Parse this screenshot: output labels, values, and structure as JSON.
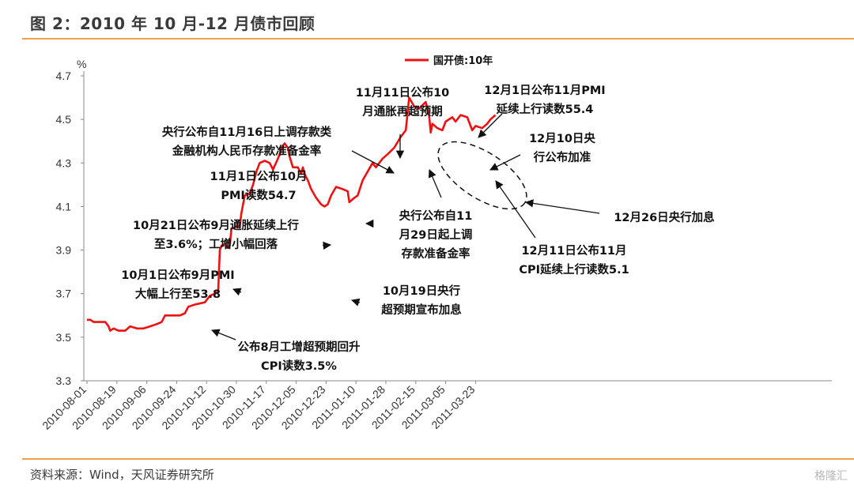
{
  "title": "图 2：2010 年 10 月-12 月债市回顾",
  "source": "资料来源：Wind，天风证券研究所",
  "watermark": "格隆汇",
  "chart_data": {
    "type": "line",
    "unit_label": "%",
    "ylim": [
      3.3,
      4.7
    ],
    "yticks": [
      "3.3",
      "3.5",
      "3.7",
      "3.9",
      "4.1",
      "4.3",
      "4.5",
      "4.7"
    ],
    "xticks": [
      "2010-08-01",
      "2010-08-19",
      "2010-09-06",
      "2010-09-24",
      "2010-10-12",
      "2010-10-30",
      "2010-11-17",
      "2010-12-05",
      "2010-12-23",
      "2011-01-10",
      "2011-01-28",
      "2011-02-15",
      "2011-03-05",
      "2011-03-23"
    ],
    "legend_position": "top",
    "grid": false,
    "series": [
      {
        "name": "国开债:10年",
        "color": "#ee1111",
        "points": [
          [
            "2010-08-01",
            3.58
          ],
          [
            "2010-08-03",
            3.58
          ],
          [
            "2010-08-05",
            3.57
          ],
          [
            "2010-08-08",
            3.57
          ],
          [
            "2010-08-12",
            3.57
          ],
          [
            "2010-08-14",
            3.55
          ],
          [
            "2010-08-15",
            3.53
          ],
          [
            "2010-08-17",
            3.54
          ],
          [
            "2010-08-20",
            3.53
          ],
          [
            "2010-08-24",
            3.53
          ],
          [
            "2010-08-27",
            3.55
          ],
          [
            "2010-08-31",
            3.54
          ],
          [
            "2010-09-04",
            3.54
          ],
          [
            "2010-09-08",
            3.55
          ],
          [
            "2010-09-12",
            3.56
          ],
          [
            "2010-09-15",
            3.57
          ],
          [
            "2010-09-17",
            3.6
          ],
          [
            "2010-09-21",
            3.6
          ],
          [
            "2010-09-26",
            3.6
          ],
          [
            "2010-09-29",
            3.61
          ],
          [
            "2010-10-01",
            3.64
          ],
          [
            "2010-10-05",
            3.65
          ],
          [
            "2010-10-11",
            3.66
          ],
          [
            "2010-10-14",
            3.69
          ],
          [
            "2010-10-17",
            3.7
          ],
          [
            "2010-10-19",
            3.71
          ],
          [
            "2010-10-20",
            3.9
          ],
          [
            "2010-10-21",
            3.92
          ],
          [
            "2010-10-23",
            3.93
          ],
          [
            "2010-10-25",
            3.91
          ],
          [
            "2010-10-26",
            3.92
          ],
          [
            "2010-10-27",
            4.0
          ],
          [
            "2010-11-01",
            4.01
          ],
          [
            "2010-11-02",
            4.07
          ],
          [
            "2010-11-04",
            4.15
          ],
          [
            "2010-11-07",
            4.16
          ],
          [
            "2010-11-09",
            4.2
          ],
          [
            "2010-11-11",
            4.26
          ],
          [
            "2010-11-13",
            4.3
          ],
          [
            "2010-11-16",
            4.31
          ],
          [
            "2010-11-19",
            4.3
          ],
          [
            "2010-11-21",
            4.27
          ],
          [
            "2010-11-24",
            4.32
          ],
          [
            "2010-11-27",
            4.38
          ],
          [
            "2010-11-28",
            4.39
          ],
          [
            "2010-11-30",
            4.37
          ],
          [
            "2010-12-01",
            4.33
          ],
          [
            "2010-12-03",
            4.28
          ],
          [
            "2010-12-06",
            4.28
          ],
          [
            "2010-12-08",
            4.25
          ],
          [
            "2010-12-09",
            4.28
          ],
          [
            "2010-12-10",
            4.25
          ],
          [
            "2010-12-12",
            4.22
          ],
          [
            "2010-12-14",
            4.18
          ],
          [
            "2010-12-17",
            4.14
          ],
          [
            "2010-12-20",
            4.11
          ],
          [
            "2010-12-22",
            4.1
          ],
          [
            "2010-12-24",
            4.11
          ],
          [
            "2010-12-26",
            4.15
          ],
          [
            "2010-12-29",
            4.19
          ],
          [
            "2011-01-02",
            4.18
          ],
          [
            "2011-01-05",
            4.17
          ],
          [
            "2011-01-06",
            4.12
          ],
          [
            "2011-01-09",
            4.14
          ],
          [
            "2011-01-11",
            4.15
          ],
          [
            "2011-01-14",
            4.22
          ],
          [
            "2011-01-17",
            4.26
          ],
          [
            "2011-01-20",
            4.3
          ],
          [
            "2011-01-22",
            4.28
          ],
          [
            "2011-01-26",
            4.32
          ],
          [
            "2011-01-29",
            4.34
          ],
          [
            "2011-02-02",
            4.37
          ],
          [
            "2011-02-06",
            4.42
          ],
          [
            "2011-02-09",
            4.45
          ],
          [
            "2011-02-11",
            4.6
          ],
          [
            "2011-02-14",
            4.56
          ],
          [
            "2011-02-17",
            4.55
          ],
          [
            "2011-02-21",
            4.58
          ],
          [
            "2011-02-23",
            4.52
          ],
          [
            "2011-02-24",
            4.44
          ],
          [
            "2011-02-25",
            4.48
          ],
          [
            "2011-02-28",
            4.46
          ],
          [
            "2011-03-03",
            4.45
          ],
          [
            "2011-03-05",
            4.49
          ],
          [
            "2011-03-09",
            4.51
          ],
          [
            "2011-03-11",
            4.49
          ],
          [
            "2011-03-14",
            4.52
          ],
          [
            "2011-03-18",
            4.51
          ],
          [
            "2011-03-21",
            4.45
          ],
          [
            "2011-03-23",
            4.47
          ],
          [
            "2011-03-27",
            4.46
          ],
          [
            "2011-03-30",
            4.48
          ],
          [
            "2011-04-01",
            4.5
          ],
          [
            "2011-04-04",
            4.52
          ]
        ]
      }
    ],
    "annotations": [
      {
        "lines": [
          "公布8月工增超预期回升",
          "CPI读数3.5%"
        ],
        "date": "2010-09-10",
        "value": 3.55
      },
      {
        "lines": [
          "10月1日公布9月PMI",
          "大幅上行至53.8"
        ],
        "date": "2010-10-01",
        "value": 3.64
      },
      {
        "lines": [
          "10月19日央行",
          "超预期宣布加息"
        ],
        "date": "2010-10-19",
        "value": 3.71
      },
      {
        "lines": [
          "10月21日公布9月通胀延续上行",
          "至3.6%；工增小幅回落"
        ],
        "date": "2010-10-21",
        "value": 3.92
      },
      {
        "lines": [
          "11月1日公布10月",
          "PMI读数54.7"
        ],
        "date": "2010-11-01",
        "value": 4.01
      },
      {
        "lines": [
          "央行公布自11月16日上调存款类",
          "金融机构人民币存款准备金率"
        ],
        "date": "2010-11-13",
        "value": 4.3
      },
      {
        "lines": [
          "11月11日公布10",
          "月通胀再超预期"
        ],
        "date": "2010-11-14",
        "value": 4.31
      },
      {
        "lines": [
          "央行公布自11",
          "月29日起上调",
          "存款准备金率"
        ],
        "date": "2010-11-21",
        "value": 4.27
      },
      {
        "lines": [
          "12月1日公布11月PMI",
          "延续上行读数55.4"
        ],
        "date": "2010-12-01",
        "value": 4.33
      },
      {
        "lines": [
          "12月10日央",
          "行公布加准"
        ],
        "date": "2010-12-10",
        "value": 4.25
      },
      {
        "lines": [
          "12月11日公布11月",
          "CPI延续上行读数5.1"
        ],
        "date": "2010-12-12",
        "value": 4.22
      },
      {
        "lines": [
          "12月26日央行加息"
        ],
        "date": "2010-12-24",
        "value": 4.11
      }
    ]
  }
}
